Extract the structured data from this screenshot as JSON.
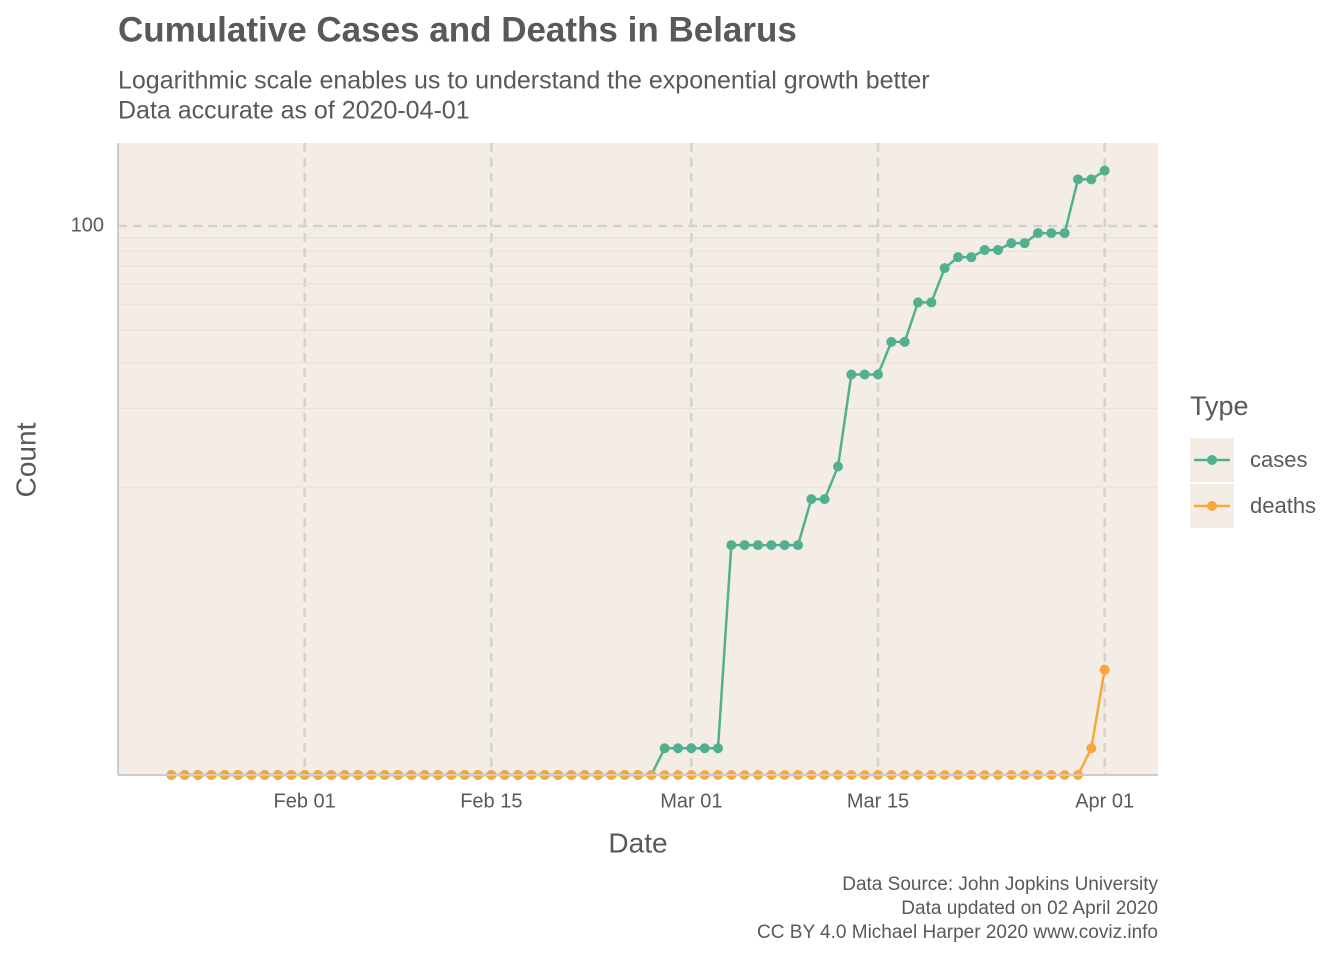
{
  "chart_data": {
    "type": "line",
    "title": "Cumulative Cases and Deaths in Belarus",
    "subtitle": [
      "Logarithmic scale enables us to understand the exponential growth better",
      "Data accurate as of 2020-04-01"
    ],
    "x_label": "Date",
    "y_label": "Count",
    "caption": [
      "Data Source: John Jopkins University",
      "Data updated on 02 April 2020",
      "CC BY 4.0 Michael Harper 2020 www.coviz.info"
    ],
    "x": [
      "01-22",
      "01-23",
      "01-24",
      "01-25",
      "01-26",
      "01-27",
      "01-28",
      "01-29",
      "01-30",
      "01-31",
      "02-01",
      "02-02",
      "02-03",
      "02-04",
      "02-05",
      "02-06",
      "02-07",
      "02-08",
      "02-09",
      "02-10",
      "02-11",
      "02-12",
      "02-13",
      "02-14",
      "02-15",
      "02-16",
      "02-17",
      "02-18",
      "02-19",
      "02-20",
      "02-21",
      "02-22",
      "02-23",
      "02-24",
      "02-25",
      "02-26",
      "02-27",
      "02-28",
      "02-29",
      "03-01",
      "03-02",
      "03-03",
      "03-04",
      "03-05",
      "03-06",
      "03-07",
      "03-08",
      "03-09",
      "03-10",
      "03-11",
      "03-12",
      "03-13",
      "03-14",
      "03-15",
      "03-16",
      "03-17",
      "03-18",
      "03-19",
      "03-20",
      "03-21",
      "03-22",
      "03-23",
      "03-24",
      "03-25",
      "03-26",
      "03-27",
      "03-28",
      "03-29",
      "03-30",
      "03-31",
      "04-01"
    ],
    "series": [
      {
        "name": "cases",
        "color": "#52b08f",
        "values": [
          0,
          0,
          0,
          0,
          0,
          0,
          0,
          0,
          0,
          0,
          0,
          0,
          0,
          0,
          0,
          0,
          0,
          0,
          0,
          0,
          0,
          0,
          0,
          0,
          0,
          0,
          0,
          0,
          0,
          0,
          0,
          0,
          0,
          0,
          0,
          0,
          0,
          1,
          1,
          1,
          1,
          1,
          6,
          6,
          6,
          6,
          6,
          6,
          9,
          9,
          12,
          27,
          27,
          27,
          36,
          36,
          51,
          51,
          69,
          76,
          76,
          81,
          81,
          86,
          86,
          94,
          94,
          94,
          151,
          151,
          163
        ]
      },
      {
        "name": "deaths",
        "color": "#f8a83a",
        "values": [
          0,
          0,
          0,
          0,
          0,
          0,
          0,
          0,
          0,
          0,
          0,
          0,
          0,
          0,
          0,
          0,
          0,
          0,
          0,
          0,
          0,
          0,
          0,
          0,
          0,
          0,
          0,
          0,
          0,
          0,
          0,
          0,
          0,
          0,
          0,
          0,
          0,
          0,
          0,
          0,
          0,
          0,
          0,
          0,
          0,
          0,
          0,
          0,
          0,
          0,
          0,
          0,
          0,
          0,
          0,
          0,
          0,
          0,
          0,
          0,
          0,
          0,
          0,
          0,
          0,
          0,
          0,
          0,
          0,
          1,
          2
        ]
      }
    ],
    "xlim": [
      "01-18",
      "04-05"
    ],
    "xticks": [
      {
        "value": "02-01",
        "label": "Feb 01"
      },
      {
        "value": "02-15",
        "label": "Feb 15"
      },
      {
        "value": "03-01",
        "label": "Mar 01"
      },
      {
        "value": "03-15",
        "label": "Mar 15"
      },
      {
        "value": "04-01",
        "label": "Apr 01"
      }
    ],
    "ylim": [
      0.79,
      208
    ],
    "yticks": [
      100
    ],
    "y_minor_ticks": [
      10,
      20,
      30,
      40,
      50,
      60,
      70,
      80,
      90
    ],
    "log_y": true,
    "grid": true,
    "legend_title": "Type",
    "legend_position": "right"
  }
}
